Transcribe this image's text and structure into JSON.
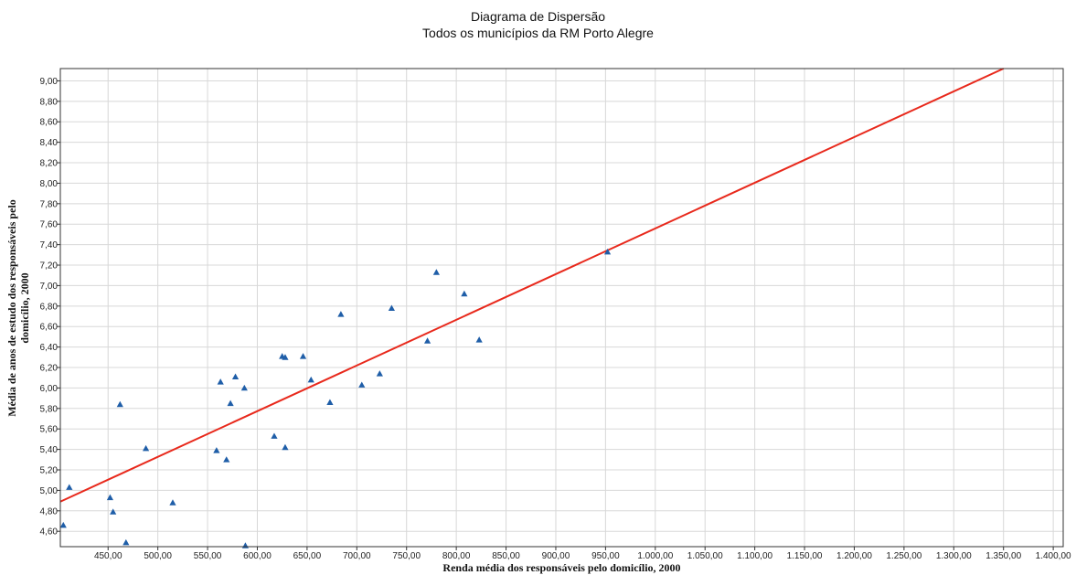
{
  "chart_data": {
    "type": "scatter",
    "title": "Diagrama de Dispersão",
    "subtitle": "Todos os municípios da RM Porto Alegre",
    "xlabel": "Renda média dos responsáveis pelo domicílio, 2000",
    "ylabel_line1": "Média de anos de estudo dos responsáveis pelo",
    "ylabel_line2": "domicílio, 2000",
    "xlim": [
      402,
      1410
    ],
    "ylim": [
      4.45,
      9.12
    ],
    "xticks": [
      450,
      500,
      550,
      600,
      650,
      700,
      750,
      800,
      850,
      900,
      950,
      1000,
      1050,
      1100,
      1150,
      1200,
      1250,
      1300,
      1350,
      1400
    ],
    "xtick_labels": [
      "450,00",
      "500,00",
      "550,00",
      "600,00",
      "650,00",
      "700,00",
      "750,00",
      "800,00",
      "850,00",
      "900,00",
      "950,00",
      "1.000,00",
      "1.050,00",
      "1.100,00",
      "1.150,00",
      "1.200,00",
      "1.250,00",
      "1.300,00",
      "1.350,00",
      "1.400,00"
    ],
    "yticks": [
      4.6,
      4.8,
      5.0,
      5.2,
      5.4,
      5.6,
      5.8,
      6.0,
      6.2,
      6.4,
      6.6,
      6.8,
      7.0,
      7.2,
      7.4,
      7.6,
      7.8,
      8.0,
      8.2,
      8.4,
      8.6,
      8.8,
      9.0
    ],
    "ytick_labels": [
      "4,60",
      "4,80",
      "5,00",
      "5,20",
      "5,40",
      "5,60",
      "5,80",
      "6,00",
      "6,20",
      "6,40",
      "6,60",
      "6,80",
      "7,00",
      "7,20",
      "7,40",
      "7,60",
      "7,80",
      "8,00",
      "8,20",
      "8,40",
      "8,60",
      "8,80",
      "9,00"
    ],
    "grid": true,
    "points": [
      {
        "x": 405,
        "y": 4.66
      },
      {
        "x": 411,
        "y": 5.03
      },
      {
        "x": 452,
        "y": 4.93
      },
      {
        "x": 455,
        "y": 4.79
      },
      {
        "x": 462,
        "y": 5.84
      },
      {
        "x": 468,
        "y": 4.49
      },
      {
        "x": 488,
        "y": 5.41
      },
      {
        "x": 515,
        "y": 4.88
      },
      {
        "x": 559,
        "y": 5.39
      },
      {
        "x": 563,
        "y": 6.06
      },
      {
        "x": 569,
        "y": 5.3
      },
      {
        "x": 573,
        "y": 5.85
      },
      {
        "x": 578,
        "y": 6.11
      },
      {
        "x": 587,
        "y": 6.0
      },
      {
        "x": 588,
        "y": 4.46
      },
      {
        "x": 617,
        "y": 5.53
      },
      {
        "x": 625,
        "y": 6.31
      },
      {
        "x": 628,
        "y": 6.3
      },
      {
        "x": 628,
        "y": 5.42
      },
      {
        "x": 646,
        "y": 6.31
      },
      {
        "x": 654,
        "y": 6.08
      },
      {
        "x": 673,
        "y": 5.86
      },
      {
        "x": 684,
        "y": 6.72
      },
      {
        "x": 705,
        "y": 6.03
      },
      {
        "x": 723,
        "y": 6.14
      },
      {
        "x": 735,
        "y": 6.78
      },
      {
        "x": 771,
        "y": 6.46
      },
      {
        "x": 780,
        "y": 7.13
      },
      {
        "x": 808,
        "y": 6.92
      },
      {
        "x": 823,
        "y": 6.47
      },
      {
        "x": 952,
        "y": 7.33
      }
    ],
    "trendline": {
      "x": [
        402,
        1350
      ],
      "y": [
        4.89,
        9.12
      ],
      "color": "#e8291c"
    },
    "marker_color": "#1f5ea8",
    "grid_color": "#d8d8d8"
  }
}
